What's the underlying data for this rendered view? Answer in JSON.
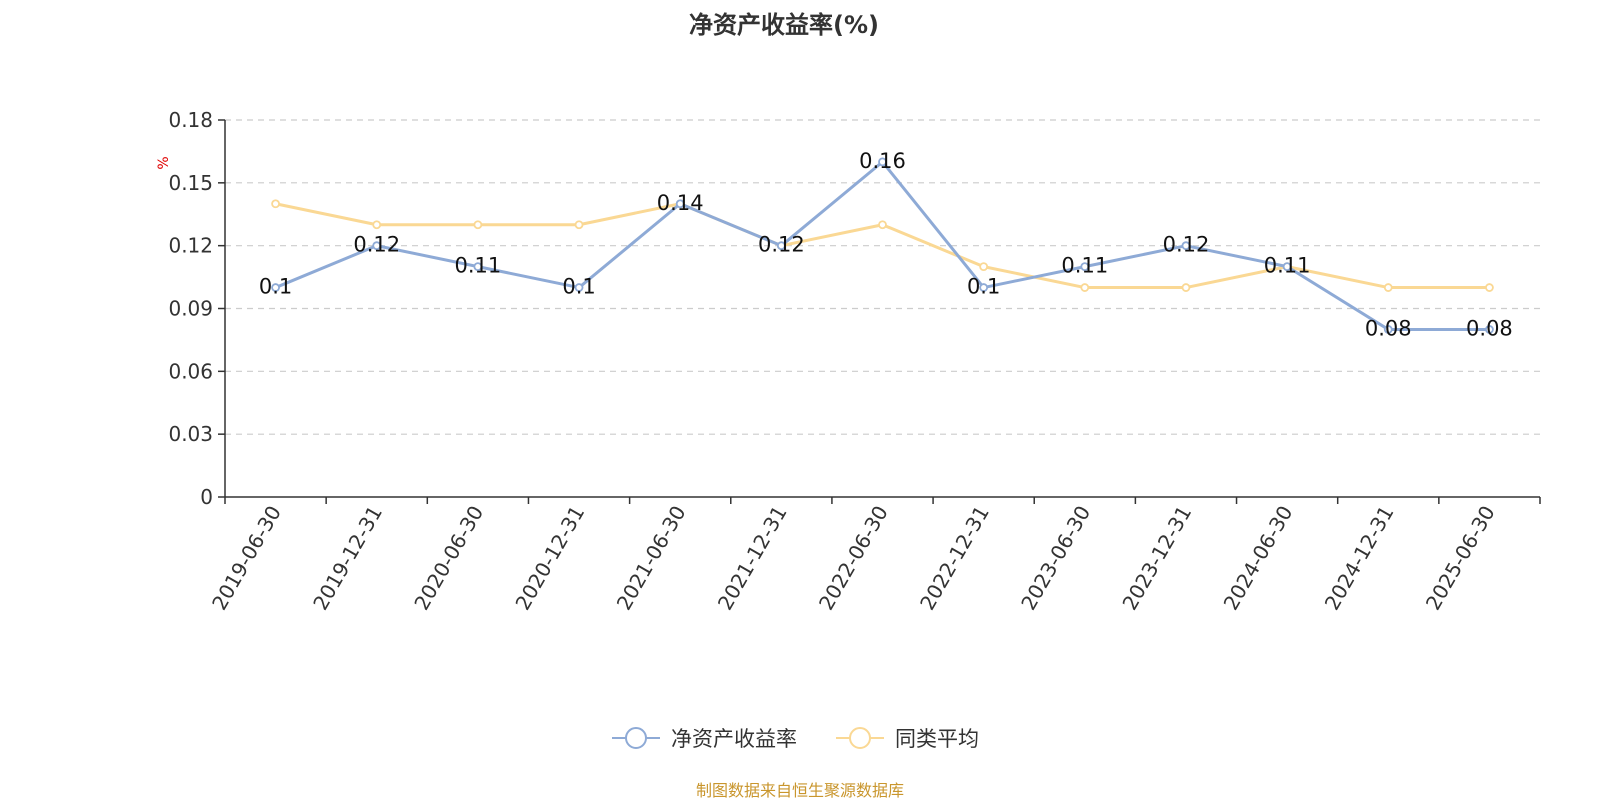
{
  "chart_data": {
    "type": "line",
    "title": "净资产收益率(%)",
    "ylabel": "%",
    "x": [
      "2019-06-30",
      "2019-12-31",
      "2020-06-30",
      "2020-12-31",
      "2021-06-30",
      "2021-12-31",
      "2022-06-30",
      "2022-12-31",
      "2023-06-30",
      "2023-12-31",
      "2024-06-30",
      "2024-12-31",
      "2025-06-30"
    ],
    "ylim": [
      0,
      0.18
    ],
    "yticks": [
      "0",
      "0.03",
      "0.06",
      "0.09",
      "0.12",
      "0.15",
      "0.18"
    ],
    "grid": true,
    "legend_position": "bottom",
    "series": [
      {
        "name": "净资产收益率",
        "color": "#8eaad6",
        "values": [
          0.1,
          0.12,
          0.11,
          0.1,
          0.14,
          0.12,
          0.16,
          0.1,
          0.11,
          0.12,
          0.11,
          0.08,
          0.08
        ],
        "labels": [
          "0.1",
          "0.12",
          "0.11",
          "0.1",
          "0.14",
          "0.12",
          "0.16",
          "0.1",
          "0.11",
          "0.12",
          "0.11",
          "0.08",
          "0.08"
        ]
      },
      {
        "name": "同类平均",
        "color": "#fad894",
        "values": [
          0.14,
          0.13,
          0.13,
          0.13,
          0.14,
          0.12,
          0.13,
          0.11,
          0.1,
          0.1,
          0.11,
          0.1,
          0.1
        ]
      }
    ]
  },
  "source_note": "制图数据来自恒生聚源数据库",
  "colors": {
    "title": "#333333",
    "axis": "#333333",
    "grid": "#cccccc",
    "ylabel": "#e00000",
    "source": "#c9962d"
  }
}
